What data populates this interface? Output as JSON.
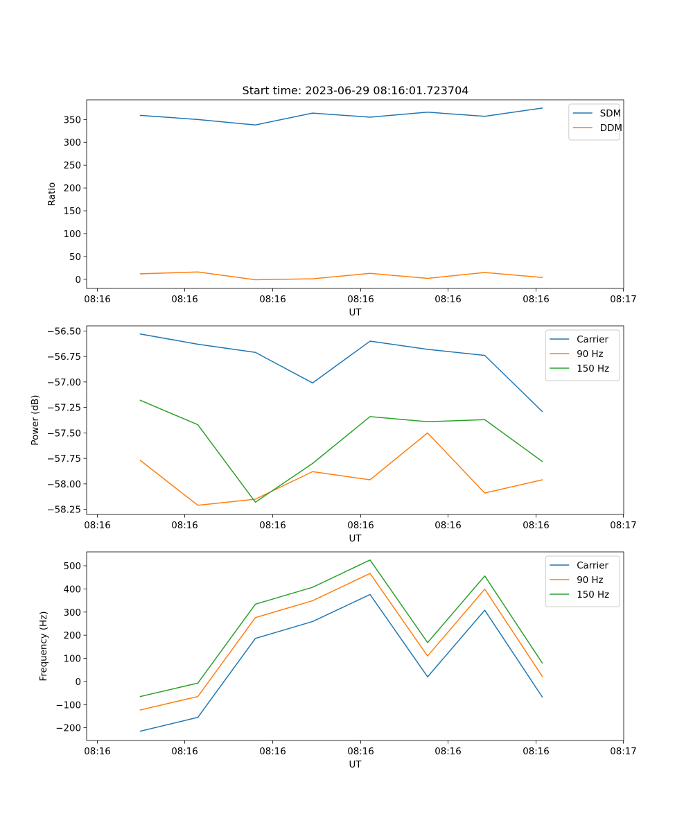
{
  "title": "Start time: 2023-06-29 08:16:01.723704",
  "colors": {
    "blue": "#1f77b4",
    "orange": "#ff7f0e",
    "green": "#2ca02c"
  },
  "chart_data": [
    {
      "type": "line",
      "xlabel": "UT",
      "ylabel": "Ratio",
      "xticks": [
        "08:16",
        "08:16",
        "08:16",
        "08:16",
        "08:16",
        "08:16",
        "08:17"
      ],
      "yticks": [
        0,
        50,
        100,
        150,
        200,
        250,
        300,
        350
      ],
      "ylim": [
        -20,
        393
      ],
      "legend": "top-right",
      "grid": false,
      "series": [
        {
          "name": "SDM",
          "color": "#1f77b4",
          "values": [
            359,
            350,
            338,
            364,
            355,
            366,
            357,
            375
          ]
        },
        {
          "name": "DDM",
          "color": "#ff7f0e",
          "values": [
            12,
            16,
            -1,
            1,
            13,
            2,
            15,
            4
          ]
        }
      ]
    },
    {
      "type": "line",
      "xlabel": "UT",
      "ylabel": "Power (dB)",
      "xticks": [
        "08:16",
        "08:16",
        "08:16",
        "08:16",
        "08:16",
        "08:16",
        "08:17"
      ],
      "yticks": [
        -58.25,
        -58.0,
        -57.75,
        -57.5,
        -57.25,
        -57.0,
        -56.75,
        -56.5
      ],
      "ytick_labels": [
        "−58.25",
        "−58.00",
        "−57.75",
        "−57.50",
        "−57.25",
        "−57.00",
        "−56.75",
        "−56.50"
      ],
      "ylim": [
        -58.3,
        -56.45
      ],
      "legend": "top-right",
      "grid": false,
      "series": [
        {
          "name": "Carrier",
          "color": "#1f77b4",
          "values": [
            -56.53,
            -56.63,
            -56.71,
            -57.01,
            -56.6,
            -56.68,
            -56.74,
            -57.29
          ]
        },
        {
          "name": "90 Hz",
          "color": "#ff7f0e",
          "values": [
            -57.77,
            -58.21,
            -58.15,
            -57.88,
            -57.96,
            -57.5,
            -58.09,
            -57.96
          ]
        },
        {
          "name": "150 Hz",
          "color": "#2ca02c",
          "values": [
            -57.18,
            -57.42,
            -58.18,
            -57.8,
            -57.34,
            -57.39,
            -57.37,
            -57.78
          ]
        }
      ]
    },
    {
      "type": "line",
      "xlabel": "UT",
      "ylabel": "Frequency (Hz)",
      "xticks": [
        "08:16",
        "08:16",
        "08:16",
        "08:16",
        "08:16",
        "08:16",
        "08:17"
      ],
      "yticks": [
        -200,
        -100,
        0,
        100,
        200,
        300,
        400,
        500
      ],
      "ytick_labels": [
        "−200",
        "−100",
        "0",
        "100",
        "200",
        "300",
        "400",
        "500"
      ],
      "ylim": [
        -255,
        560
      ],
      "legend": "top-right",
      "grid": false,
      "series": [
        {
          "name": "Carrier",
          "color": "#1f77b4",
          "values": [
            -215,
            -155,
            186,
            259,
            376,
            20,
            308,
            -67
          ]
        },
        {
          "name": "90 Hz",
          "color": "#ff7f0e",
          "values": [
            -123,
            -65,
            276,
            349,
            467,
            110,
            399,
            22
          ]
        },
        {
          "name": "150 Hz",
          "color": "#2ca02c",
          "values": [
            -65,
            -7,
            334,
            407,
            525,
            168,
            456,
            80
          ]
        }
      ]
    }
  ]
}
